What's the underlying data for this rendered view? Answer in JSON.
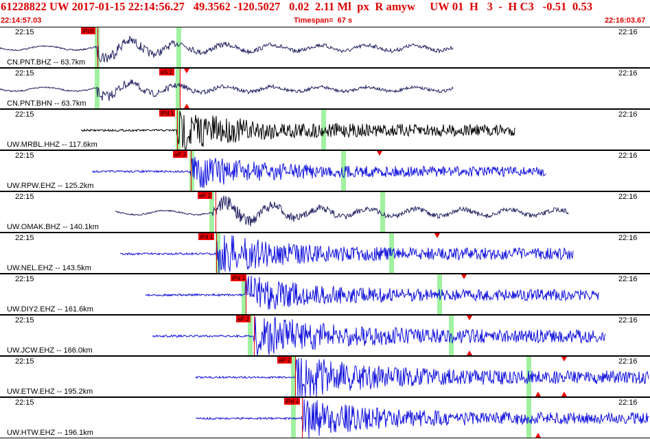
{
  "header": {
    "title": "61228822 UW 2017-01-15 22:14:56.27   49.3562 -120.5027   0.02  2.11 Ml  px  R amyw     UW 01  H   3  -  H C3   -0.51  0.53",
    "start_time": "22:14:57.03",
    "timespan": "Timespan=  67 s",
    "end_time": "22:16:03.67"
  },
  "colors": {
    "header_text": "#dd0000",
    "pick_box": "#ee0000",
    "green_bar": "#90ee90",
    "trace_blue": "#1010dd",
    "trace_navy": "#202060",
    "trace_black": "#000000"
  },
  "tick_left": "22:15",
  "tick_right": "22:16",
  "panels": [
    {
      "station": "CN.PNT.BHZ -- 63.7km",
      "pick": "iPc0",
      "color": "#202060",
      "start": 0,
      "end": 660,
      "onset": 142,
      "amp": 10,
      "lp": true,
      "pickx": 118,
      "green": [
        138,
        257
      ],
      "redline": 142,
      "tris": []
    },
    {
      "station": "CN.PNT.BHN -- 63.7km",
      "pick": "eS 2",
      "color": "#202060",
      "start": 0,
      "end": 660,
      "onset": 142,
      "amp": 8,
      "lp": true,
      "pickx": 232,
      "green": [
        138,
        256
      ],
      "redline": 262,
      "tris": [
        [
          "down",
          272
        ],
        [
          "up",
          272
        ]
      ]
    },
    {
      "station": "UW.MRBL.HHZ -- 117.6km",
      "pick": "iPd 1",
      "color": "#000000",
      "start": 118,
      "end": 750,
      "onset": 258,
      "amp": 14,
      "lp": false,
      "pickx": 232,
      "green": [
        256,
        468
      ],
      "redline": 258,
      "tris": []
    },
    {
      "station": "UW.RPW.EHZ -- 125.2km",
      "pick": "eP 2",
      "color": "#1010dd",
      "start": 135,
      "end": 795,
      "onset": 278,
      "amp": 12,
      "lp": false,
      "pickx": 252,
      "green": [
        276,
        497
      ],
      "redline": 278,
      "tris": [
        [
          "down",
          553
        ]
      ]
    },
    {
      "station": "UW.OMAK.BHZ -- 140.1km",
      "pick": "eP 2",
      "color": "#202060",
      "start": 168,
      "end": 828,
      "onset": 310,
      "amp": 12,
      "lp": true,
      "pickx": 288,
      "green": [
        305,
        554
      ],
      "redline": 314,
      "tris": []
    },
    {
      "station": "UW.NEL.EHZ -- 143.5km",
      "pick": "iPd 1",
      "color": "#1010dd",
      "start": 175,
      "end": 835,
      "onset": 315,
      "amp": 14,
      "lp": false,
      "pickx": 289,
      "green": [
        314,
        567
      ],
      "redline": 315,
      "tris": [
        [
          "down",
          637
        ]
      ]
    },
    {
      "station": "UW.DIY2.EHZ -- 161.6km",
      "pick": "iPd 1",
      "color": "#1010dd",
      "start": 212,
      "end": 872,
      "onset": 358,
      "amp": 13,
      "lp": false,
      "pickx": 336,
      "green": [
        352,
        637
      ],
      "redline": 358,
      "tris": [
        [
          "down",
          676
        ]
      ]
    },
    {
      "station": "UW.JCW.EHZ -- 166.0km",
      "pick": "eP 2",
      "color": "#1010dd",
      "start": 222,
      "end": 882,
      "onset": 370,
      "amp": 16,
      "lp": false,
      "pickx": 344,
      "green": [
        361,
        654
      ],
      "redline": 370,
      "tris": [
        [
          "down",
          684
        ],
        [
          "up",
          684
        ]
      ]
    },
    {
      "station": "UW.ETW.EHZ -- 195.2km",
      "pick": "eP 2",
      "color": "#1010dd",
      "start": 285,
      "end": 945,
      "onset": 430,
      "amp": 16,
      "lp": false,
      "pickx": 404,
      "green": [
        424,
        767
      ],
      "redline": 430,
      "tris": [
        [
          "down",
          822
        ],
        [
          "up",
          822
        ],
        [
          "up",
          784
        ]
      ]
    },
    {
      "station": "UW.HTW.EHZ -- 196.1km",
      "pick": "iPd 1",
      "color": "#1010dd",
      "start": 285,
      "end": 945,
      "onset": 440,
      "amp": 14,
      "lp": false,
      "pickx": 414,
      "green": [
        424,
        767
      ],
      "redline": 440,
      "tris": [
        [
          "up",
          784
        ]
      ]
    }
  ]
}
